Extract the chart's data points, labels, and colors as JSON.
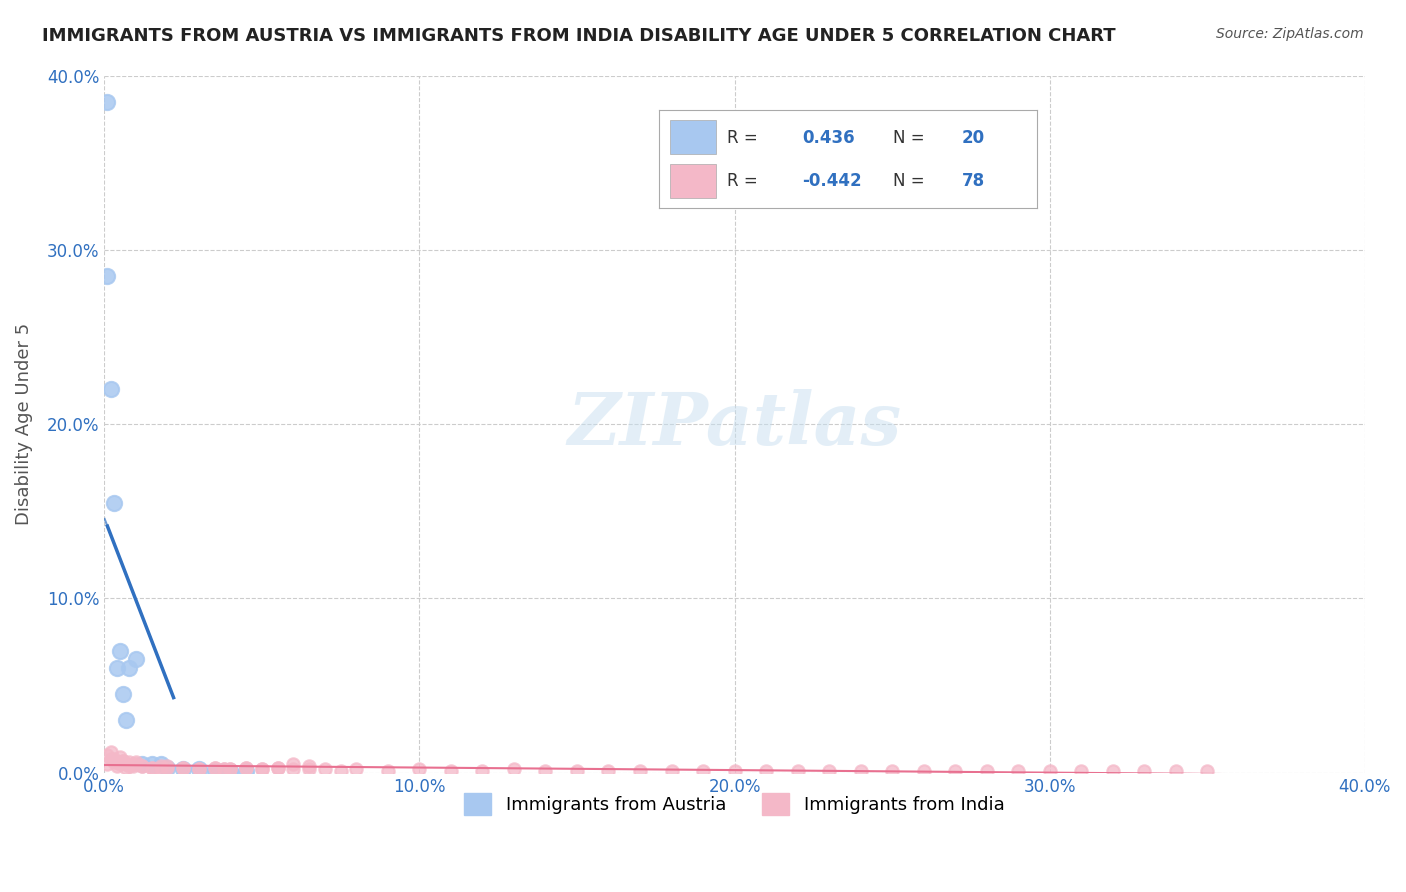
{
  "title": "IMMIGRANTS FROM AUSTRIA VS IMMIGRANTS FROM INDIA DISABILITY AGE UNDER 5 CORRELATION CHART",
  "source": "Source: ZipAtlas.com",
  "ylabel": "Disability Age Under 5",
  "xlabel_bottom": "",
  "xlim": [
    0.0,
    0.4
  ],
  "ylim": [
    0.0,
    0.4
  ],
  "xticks": [
    0.0,
    0.1,
    0.2,
    0.3,
    0.4
  ],
  "yticks": [
    0.0,
    0.1,
    0.2,
    0.3,
    0.4
  ],
  "austria_color": "#a8c8f0",
  "india_color": "#f4b8c8",
  "austria_line_color": "#3070c0",
  "india_line_color": "#e87090",
  "austria_R": 0.436,
  "austria_N": 20,
  "india_R": -0.442,
  "india_N": 78,
  "legend_R_color": "#3070c0",
  "legend_N_color": "#3070c0",
  "watermark": "ZIPatlas",
  "background_color": "#ffffff",
  "grid_color": "#cccccc",
  "austria_scatter_x": [
    0.001,
    0.001,
    0.002,
    0.003,
    0.004,
    0.005,
    0.006,
    0.007,
    0.008,
    0.01,
    0.012,
    0.015,
    0.018,
    0.02,
    0.025,
    0.03,
    0.035,
    0.038,
    0.04,
    0.045
  ],
  "austria_scatter_y": [
    0.385,
    0.285,
    0.22,
    0.155,
    0.06,
    0.07,
    0.045,
    0.03,
    0.06,
    0.065,
    0.005,
    0.005,
    0.005,
    0.003,
    0.002,
    0.002,
    0.001,
    0.001,
    0.001,
    0.001
  ],
  "india_scatter_x": [
    0.001,
    0.002,
    0.003,
    0.004,
    0.005,
    0.006,
    0.007,
    0.008,
    0.009,
    0.01,
    0.012,
    0.015,
    0.018,
    0.02,
    0.025,
    0.03,
    0.035,
    0.038,
    0.04,
    0.045,
    0.05,
    0.055,
    0.06,
    0.065,
    0.07,
    0.075,
    0.08,
    0.09,
    0.1,
    0.11,
    0.12,
    0.13,
    0.14,
    0.15,
    0.16,
    0.17,
    0.18,
    0.19,
    0.2,
    0.21,
    0.22,
    0.23,
    0.24,
    0.25,
    0.26,
    0.27,
    0.28,
    0.29,
    0.3,
    0.31,
    0.32,
    0.33,
    0.34,
    0.35,
    0.001,
    0.002,
    0.003,
    0.004,
    0.005,
    0.006,
    0.007,
    0.008,
    0.009,
    0.01,
    0.012,
    0.015,
    0.018,
    0.02,
    0.025,
    0.03,
    0.035,
    0.038,
    0.04,
    0.045,
    0.05,
    0.055,
    0.06,
    0.065
  ],
  "india_scatter_y": [
    0.005,
    0.008,
    0.006,
    0.004,
    0.005,
    0.007,
    0.003,
    0.004,
    0.005,
    0.006,
    0.004,
    0.003,
    0.003,
    0.004,
    0.003,
    0.002,
    0.003,
    0.002,
    0.002,
    0.003,
    0.002,
    0.003,
    0.002,
    0.002,
    0.002,
    0.001,
    0.002,
    0.001,
    0.002,
    0.001,
    0.001,
    0.002,
    0.001,
    0.001,
    0.001,
    0.001,
    0.001,
    0.001,
    0.001,
    0.001,
    0.001,
    0.001,
    0.001,
    0.001,
    0.001,
    0.001,
    0.001,
    0.001,
    0.001,
    0.001,
    0.001,
    0.001,
    0.001,
    0.001,
    0.01,
    0.012,
    0.008,
    0.006,
    0.009,
    0.007,
    0.005,
    0.006,
    0.004,
    0.005,
    0.004,
    0.003,
    0.004,
    0.003,
    0.003,
    0.002,
    0.003,
    0.002,
    0.002,
    0.003,
    0.002,
    0.003,
    0.005,
    0.004
  ]
}
